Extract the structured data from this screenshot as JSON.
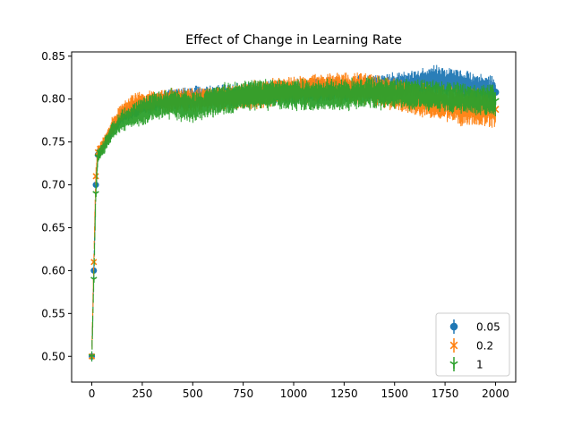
{
  "chart_data": {
    "type": "line",
    "title": "Effect of Change in Learning Rate",
    "xlabel": "",
    "ylabel": "",
    "xlim": [
      -100,
      2100
    ],
    "ylim": [
      0.47,
      0.855
    ],
    "x_ticks": [
      0,
      250,
      500,
      750,
      1000,
      1250,
      1500,
      1750,
      2000
    ],
    "x_tick_labels": [
      "0",
      "250",
      "500",
      "750",
      "1000",
      "1250",
      "1500",
      "1750",
      "2000"
    ],
    "y_ticks": [
      0.5,
      0.55,
      0.6,
      0.65,
      0.7,
      0.75,
      0.8,
      0.85
    ],
    "y_tick_labels": [
      "0.50",
      "0.55",
      "0.60",
      "0.65",
      "0.70",
      "0.75",
      "0.80",
      "0.85"
    ],
    "grid": false,
    "legend_position": "lower-right",
    "error_bars": true,
    "series": [
      {
        "name": "0.05",
        "color": "#1f77b4",
        "marker": "circle",
        "x": [
          0,
          10,
          20,
          30,
          40,
          60,
          80,
          100,
          150,
          200,
          250,
          300,
          400,
          500,
          600,
          700,
          800,
          900,
          1000,
          1100,
          1200,
          1300,
          1400,
          1500,
          1600,
          1700,
          1800,
          1900,
          2000
        ],
        "y": [
          0.5,
          0.6,
          0.7,
          0.735,
          0.74,
          0.745,
          0.755,
          0.765,
          0.78,
          0.788,
          0.792,
          0.795,
          0.8,
          0.802,
          0.803,
          0.805,
          0.806,
          0.808,
          0.809,
          0.81,
          0.811,
          0.812,
          0.813,
          0.815,
          0.818,
          0.822,
          0.818,
          0.814,
          0.808
        ],
        "err": [
          0.005,
          0.005,
          0.005,
          0.004,
          0.004,
          0.004,
          0.004,
          0.005,
          0.005,
          0.006,
          0.006,
          0.006,
          0.007,
          0.007,
          0.007,
          0.007,
          0.007,
          0.008,
          0.008,
          0.008,
          0.008,
          0.008,
          0.009,
          0.009,
          0.009,
          0.01,
          0.01,
          0.01,
          0.01
        ]
      },
      {
        "name": "0.2",
        "color": "#ff7f0e",
        "marker": "x",
        "x": [
          0,
          10,
          20,
          30,
          40,
          60,
          80,
          100,
          150,
          200,
          250,
          300,
          400,
          500,
          600,
          700,
          800,
          900,
          1000,
          1100,
          1200,
          1300,
          1400,
          1500,
          1600,
          1700,
          1800,
          1900,
          2000
        ],
        "y": [
          0.5,
          0.61,
          0.71,
          0.738,
          0.742,
          0.748,
          0.758,
          0.768,
          0.785,
          0.793,
          0.796,
          0.797,
          0.798,
          0.799,
          0.8,
          0.802,
          0.805,
          0.808,
          0.81,
          0.812,
          0.814,
          0.813,
          0.81,
          0.805,
          0.8,
          0.796,
          0.792,
          0.79,
          0.788
        ],
        "err": [
          0.006,
          0.006,
          0.006,
          0.005,
          0.005,
          0.005,
          0.005,
          0.006,
          0.006,
          0.007,
          0.007,
          0.007,
          0.008,
          0.008,
          0.008,
          0.008,
          0.009,
          0.009,
          0.009,
          0.009,
          0.01,
          0.01,
          0.01,
          0.01,
          0.011,
          0.011,
          0.012,
          0.012,
          0.012
        ]
      },
      {
        "name": "1",
        "color": "#2ca02c",
        "marker": "tri_down",
        "x": [
          0,
          10,
          20,
          30,
          40,
          60,
          80,
          100,
          150,
          200,
          250,
          300,
          400,
          500,
          600,
          700,
          800,
          900,
          1000,
          1100,
          1200,
          1300,
          1400,
          1500,
          1600,
          1700,
          1800,
          1900,
          2000
        ],
        "y": [
          0.5,
          0.59,
          0.69,
          0.733,
          0.738,
          0.744,
          0.753,
          0.762,
          0.775,
          0.78,
          0.785,
          0.79,
          0.795,
          0.79,
          0.797,
          0.802,
          0.805,
          0.806,
          0.805,
          0.804,
          0.805,
          0.806,
          0.807,
          0.806,
          0.805,
          0.804,
          0.802,
          0.8,
          0.798
        ],
        "err": [
          0.006,
          0.006,
          0.006,
          0.005,
          0.005,
          0.005,
          0.006,
          0.006,
          0.007,
          0.008,
          0.009,
          0.009,
          0.01,
          0.01,
          0.01,
          0.01,
          0.01,
          0.01,
          0.01,
          0.01,
          0.01,
          0.01,
          0.01,
          0.01,
          0.01,
          0.01,
          0.01,
          0.01,
          0.01
        ]
      }
    ]
  }
}
